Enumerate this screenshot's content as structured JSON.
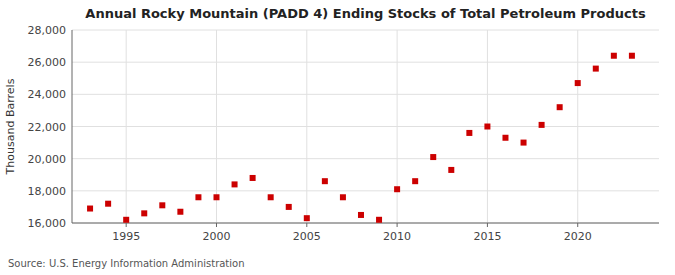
{
  "chart_data": {
    "type": "scatter",
    "title": "Annual Rocky Mountain (PADD 4) Ending Stocks of Total Petroleum Products",
    "y_label": "Thousand Barrels",
    "source": "Source: U.S. Energy Information Administration",
    "x": [
      1993,
      1994,
      1995,
      1996,
      1997,
      1998,
      1999,
      2000,
      2001,
      2002,
      2003,
      2004,
      2005,
      2006,
      2007,
      2008,
      2009,
      2010,
      2011,
      2012,
      2013,
      2014,
      2015,
      2016,
      2017,
      2018,
      2019,
      2020,
      2021,
      2022,
      2023
    ],
    "values": [
      16900,
      17200,
      16200,
      16600,
      17100,
      16700,
      17600,
      17600,
      18400,
      18800,
      17600,
      17000,
      16300,
      18600,
      17600,
      16500,
      16200,
      18100,
      18600,
      20100,
      19300,
      21600,
      22000,
      21300,
      21000,
      22100,
      23200,
      24700,
      25600,
      26400,
      26400
    ],
    "color": "#cc0000",
    "marker": "square",
    "xlim": [
      1992.0,
      2024.5
    ],
    "xticks": [
      1995,
      2000,
      2005,
      2010,
      2015,
      2020
    ],
    "ylim": [
      16000,
      28000
    ],
    "yticks": [
      {
        "value": 16000,
        "label": "16,000"
      },
      {
        "value": 18000,
        "label": "18,000"
      },
      {
        "value": 20000,
        "label": "20,000"
      },
      {
        "value": 22000,
        "label": "22,000"
      },
      {
        "value": 24000,
        "label": "24,000"
      },
      {
        "value": 26000,
        "label": "26,000"
      },
      {
        "value": 28000,
        "label": "28,000"
      }
    ],
    "grid": true
  }
}
